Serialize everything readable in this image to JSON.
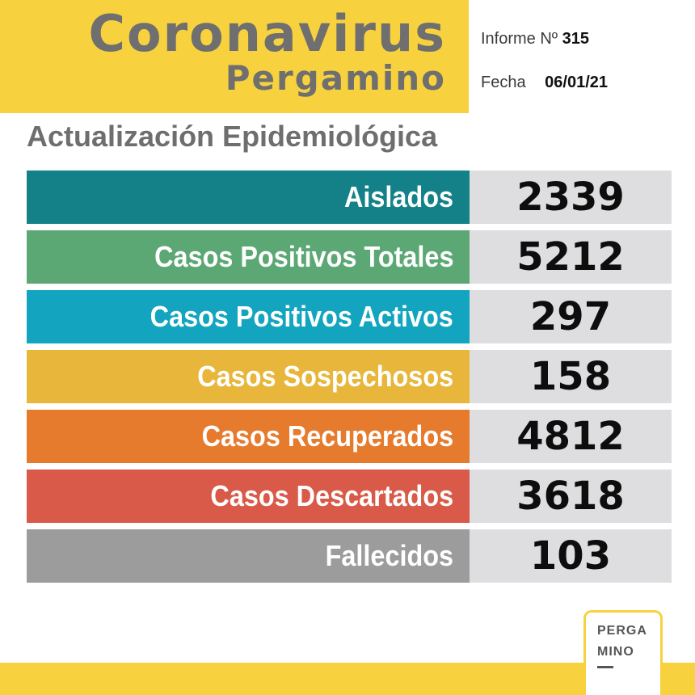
{
  "header": {
    "title": "Coronavirus",
    "subtitle": "Pergamino",
    "report_label": "Informe Nº",
    "report_number": "315",
    "date_label": "Fecha",
    "date_value": "06/01/21"
  },
  "section_title": "Actualización Epidemiológica",
  "stats": [
    {
      "label": "Aislados",
      "value": "2339",
      "color": "#138187"
    },
    {
      "label": "Casos Positivos Totales",
      "value": "5212",
      "color": "#5ca874"
    },
    {
      "label": "Casos Positivos Activos",
      "value": "297",
      "color": "#13a5bf"
    },
    {
      "label": "Casos Sospechosos",
      "value": "158",
      "color": "#e7b63a"
    },
    {
      "label": "Casos Recuperados",
      "value": "4812",
      "color": "#e67b2e"
    },
    {
      "label": "Casos Descartados",
      "value": "3618",
      "color": "#d95a48"
    },
    {
      "label": "Fallecidos",
      "value": "103",
      "color": "#9c9c9c"
    }
  ],
  "logo": {
    "line1": "PERGA",
    "line2": "MINO"
  },
  "colors": {
    "brand_yellow": "#f7d23e",
    "title_gray": "#6f6f6f",
    "value_bg": "#dedee1"
  }
}
